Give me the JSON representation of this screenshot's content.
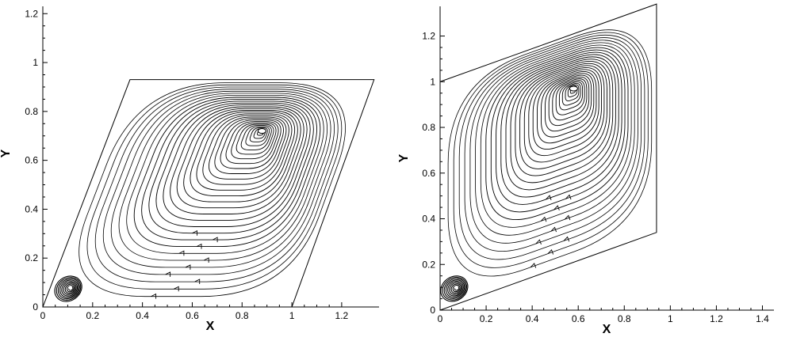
{
  "chart_data": [
    {
      "type": "streamline",
      "xlabel": "X",
      "ylabel": "Y",
      "xlim": [
        0,
        1.35
      ],
      "ylim": [
        0,
        1.23
      ],
      "xticks": [
        0,
        0.2,
        0.4,
        0.6,
        0.8,
        1,
        1.2
      ],
      "yticks": [
        0,
        0.2,
        0.4,
        0.6,
        0.8,
        1,
        1.2
      ],
      "xtick_labels": [
        "0",
        "0.2",
        "0.4",
        "0.6",
        "0.8",
        "1",
        "1.2"
      ],
      "ytick_labels": [
        "0",
        "0.2",
        "0.4",
        "0.6",
        "0.8",
        "1",
        "1.2"
      ],
      "domain_vertices": [
        [
          0,
          0
        ],
        [
          1,
          0
        ],
        [
          1.33,
          0.93
        ],
        [
          0.35,
          0.93
        ]
      ],
      "primary_vortex_center": [
        0.88,
        0.72
      ],
      "secondary_vortex_center": [
        0.11,
        0.08
      ],
      "grid": false
    },
    {
      "type": "streamline",
      "xlabel": "X",
      "ylabel": "Y",
      "xlim": [
        0,
        1.45
      ],
      "ylim": [
        0,
        1.33
      ],
      "xticks": [
        0,
        0.2,
        0.4,
        0.6,
        0.8,
        1,
        1.2,
        1.4
      ],
      "yticks": [
        0,
        0.2,
        0.4,
        0.6,
        0.8,
        1,
        1.2
      ],
      "xtick_labels": [
        "0",
        "0.2",
        "0.4",
        "0.6",
        "0.8",
        "1",
        "1.2",
        "1.4"
      ],
      "ytick_labels": [
        "0",
        "0.2",
        "0.4",
        "0.6",
        "0.8",
        "1",
        "1.2"
      ],
      "domain_vertices": [
        [
          0,
          0
        ],
        [
          0.94,
          0.34
        ],
        [
          0.94,
          1.34
        ],
        [
          0,
          1
        ]
      ],
      "primary_vortex_center": [
        0.58,
        0.97
      ],
      "secondary_vortex_center": [
        0.07,
        0.1
      ],
      "grid": false
    }
  ]
}
